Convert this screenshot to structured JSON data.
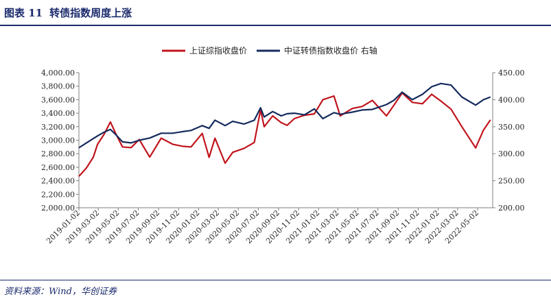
{
  "header": {
    "figure_label": "图表 11",
    "title": "转债指数周度上涨"
  },
  "source": "资料来源：Wind，华创证券",
  "chart_data": {
    "type": "line",
    "title": "",
    "xlabel": "",
    "ylabel": "",
    "legend_position": "top-center",
    "grid": false,
    "left_axis": {
      "ylim": [
        2000,
        4000
      ],
      "ticks": [
        "2,000.00",
        "2,200.00",
        "2,400.00",
        "2,600.00",
        "2,800.00",
        "3,000.00",
        "3,200.00",
        "3,400.00",
        "3,600.00",
        "3,800.00",
        "4,000.00"
      ]
    },
    "right_axis": {
      "ylim": [
        200,
        450
      ],
      "ticks": [
        "200.00",
        "250.00",
        "300.00",
        "350.00",
        "400.00",
        "450.00"
      ]
    },
    "x_tick_labels": [
      "2019-01-02",
      "2019-03-02",
      "2019-05-02",
      "2019-07-02",
      "2019-09-02",
      "2019-11-02",
      "2020-01-02",
      "2020-03-02",
      "2020-05-02",
      "2020-07-02",
      "2020-09-02",
      "2020-11-02",
      "2021-01-02",
      "2021-03-02",
      "2021-05-02",
      "2021-07-02",
      "2021-09-02",
      "2021-11-02",
      "2022-01-02",
      "2022-03-02",
      "2022-05-02"
    ],
    "series": [
      {
        "name": "上证综指收盘价",
        "axis": "left",
        "color": "#c0141c",
        "x": [
          "2019-01-02",
          "2019-01-25",
          "2019-02-15",
          "2019-02-28",
          "2019-03-20",
          "2019-04-08",
          "2019-04-25",
          "2019-05-15",
          "2019-06-10",
          "2019-07-05",
          "2019-08-06",
          "2019-09-10",
          "2019-10-15",
          "2019-11-15",
          "2019-12-10",
          "2020-01-13",
          "2020-02-03",
          "2020-02-21",
          "2020-03-23",
          "2020-04-15",
          "2020-05-20",
          "2020-06-20",
          "2020-07-09",
          "2020-07-20",
          "2020-08-15",
          "2020-09-10",
          "2020-09-28",
          "2020-10-20",
          "2020-11-20",
          "2020-12-20",
          "2021-01-15",
          "2021-02-18",
          "2021-03-09",
          "2021-04-15",
          "2021-05-15",
          "2021-06-15",
          "2021-07-28",
          "2021-08-20",
          "2021-09-14",
          "2021-10-15",
          "2021-11-15",
          "2021-12-13",
          "2022-01-10",
          "2022-02-10",
          "2022-03-15",
          "2022-04-26",
          "2022-05-20",
          "2022-06-10"
        ],
        "values": [
          2465,
          2590,
          2750,
          2940,
          3090,
          3270,
          3090,
          2900,
          2890,
          3010,
          2750,
          3030,
          2940,
          2910,
          2900,
          3100,
          2746,
          3030,
          2660,
          2820,
          2880,
          2967,
          3450,
          3200,
          3360,
          3260,
          3220,
          3320,
          3370,
          3390,
          3600,
          3655,
          3360,
          3470,
          3500,
          3590,
          3360,
          3520,
          3700,
          3560,
          3540,
          3680,
          3580,
          3460,
          3200,
          2886,
          3150,
          3300
        ]
      },
      {
        "name": "中证转债指数收盘价 右轴",
        "axis": "right",
        "color": "#142a5c",
        "x": [
          "2019-01-02",
          "2019-01-25",
          "2019-02-15",
          "2019-02-28",
          "2019-03-20",
          "2019-04-08",
          "2019-04-25",
          "2019-05-15",
          "2019-06-10",
          "2019-07-05",
          "2019-08-06",
          "2019-09-10",
          "2019-10-15",
          "2019-11-15",
          "2019-12-10",
          "2020-01-13",
          "2020-02-03",
          "2020-02-21",
          "2020-03-23",
          "2020-04-15",
          "2020-05-20",
          "2020-06-20",
          "2020-07-09",
          "2020-07-20",
          "2020-08-15",
          "2020-09-10",
          "2020-09-28",
          "2020-10-20",
          "2020-11-20",
          "2020-12-20",
          "2021-01-15",
          "2021-02-18",
          "2021-03-09",
          "2021-04-15",
          "2021-05-15",
          "2021-06-15",
          "2021-07-28",
          "2021-08-20",
          "2021-09-14",
          "2021-10-15",
          "2021-11-15",
          "2021-12-13",
          "2022-01-10",
          "2022-02-10",
          "2022-03-15",
          "2022-04-26",
          "2022-05-20",
          "2022-06-10"
        ],
        "values": [
          311,
          320,
          328,
          333,
          340,
          345,
          335,
          322,
          320,
          325,
          329,
          338,
          338,
          341,
          343,
          352,
          347,
          362,
          352,
          360,
          355,
          362,
          385,
          368,
          378,
          370,
          374,
          375,
          372,
          383,
          365,
          376,
          373,
          377,
          381,
          382,
          391,
          399,
          414,
          400,
          410,
          424,
          430,
          427,
          405,
          390,
          400,
          405
        ]
      }
    ]
  }
}
